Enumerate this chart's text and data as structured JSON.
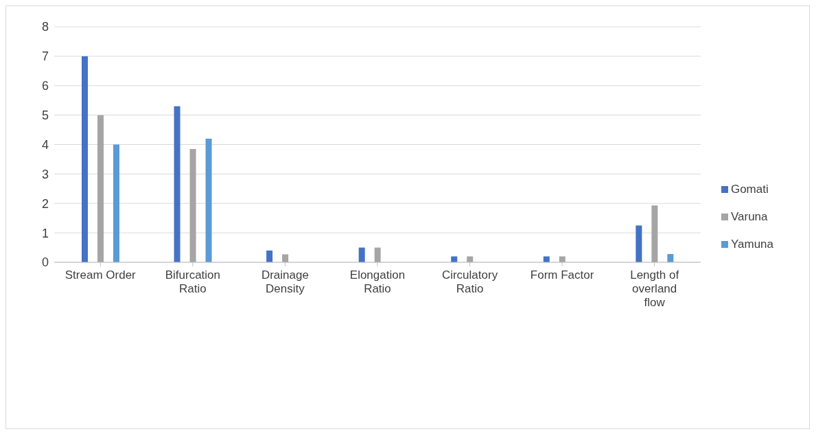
{
  "chart_data": {
    "type": "bar",
    "categories": [
      "Stream Order",
      "Bifurcation Ratio",
      "Drainage Density",
      "Elongation Ratio",
      "Circulatory Ratio",
      "Form Factor",
      "Length of overland flow"
    ],
    "series": [
      {
        "name": "Gomati",
        "color": "#4472c4",
        "values": [
          7,
          5.3,
          0.4,
          0.5,
          0.2,
          0.2,
          1.25
        ]
      },
      {
        "name": "Varuna",
        "color": "#a5a5a5",
        "values": [
          5,
          3.85,
          0.27,
          0.5,
          0.2,
          0.2,
          1.93
        ]
      },
      {
        "name": "Yamuna",
        "color": "#5b9bd5",
        "values": [
          4,
          4.2,
          null,
          null,
          null,
          null,
          0.28
        ]
      }
    ],
    "ylim": [
      0,
      8
    ],
    "yticks": [
      0,
      1,
      2,
      3,
      4,
      5,
      6,
      7,
      8
    ],
    "grid": "y",
    "legend": "right"
  }
}
